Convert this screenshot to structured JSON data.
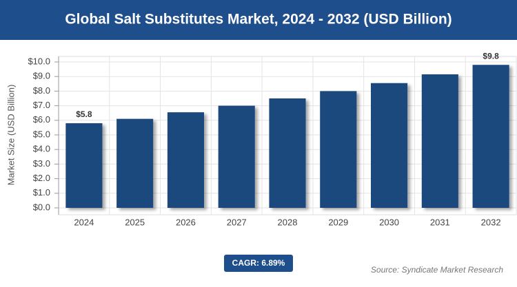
{
  "chart_data": {
    "type": "bar",
    "title": "Global Salt Substitutes Market, 2024 - 2032 (USD Billion)",
    "y_label": "Market Size (USD Billion)",
    "categories": [
      "2024",
      "2025",
      "2026",
      "2027",
      "2028",
      "2029",
      "2030",
      "2031",
      "2032"
    ],
    "values": [
      5.8,
      6.1,
      6.55,
      7.0,
      7.5,
      8.0,
      8.55,
      9.15,
      9.8
    ],
    "value_labels": [
      "$5.8",
      null,
      null,
      null,
      null,
      null,
      null,
      null,
      "$9.8"
    ],
    "color": "#1f497d",
    "ylim": [
      0,
      10
    ],
    "yticks": [
      {
        "value": 0,
        "label": "$0.0"
      },
      {
        "value": 1,
        "label": "$1.0"
      },
      {
        "value": 2,
        "label": "$2.0"
      },
      {
        "value": 3,
        "label": "$3.0"
      },
      {
        "value": 4,
        "label": "$4.0"
      },
      {
        "value": 5,
        "label": "$5.0"
      },
      {
        "value": 6,
        "label": "$6.0"
      },
      {
        "value": 7,
        "label": "$7.0"
      },
      {
        "value": 8,
        "label": "$8.0"
      },
      {
        "value": 9,
        "label": "$9.0"
      },
      {
        "value": 10,
        "label": "$10.0"
      }
    ],
    "grid": true,
    "cagr": "CAGR: 6.89%",
    "source": "Source: Syndicate Market Research"
  }
}
